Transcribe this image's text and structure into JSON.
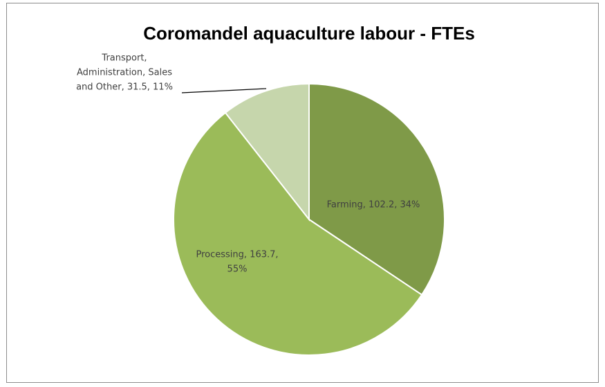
{
  "chart_data": {
    "type": "pie",
    "title": "Coromandel  aquaculture labour - FTEs",
    "values": [
      102.2,
      163.7,
      31.5
    ],
    "value_labels": [
      [
        "Farming, 102.2, 34%"
      ],
      [
        "Processing, 163.7,",
        "55%"
      ],
      [
        "Transport,",
        "Administration, Sales",
        "and Other, 31.5, 11%"
      ]
    ],
    "colors": [
      "#7f9a48",
      "#9bbb59",
      "#c6d6ac"
    ]
  }
}
